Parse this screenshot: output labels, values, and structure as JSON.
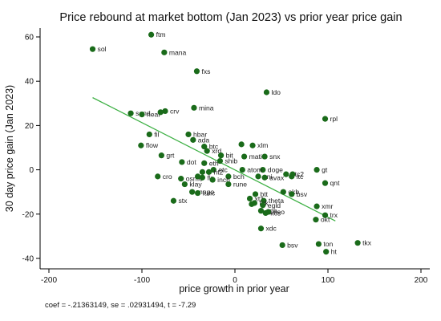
{
  "chart_data": {
    "type": "scatter",
    "title": "Price rebound at market bottom (Jan 2023) vs prior year price gain",
    "xlabel": "price growth in prior year",
    "ylabel": "30 day price gain (Jan 2023)",
    "xlim": [
      -200,
      200
    ],
    "ylim": [
      -40,
      60
    ],
    "xticks": [
      -200,
      -100,
      0,
      100,
      200
    ],
    "yticks": [
      -40,
      -20,
      0,
      20,
      40,
      60
    ],
    "grid": false,
    "colors": {
      "points": "#1a6b1a",
      "fit_line": "#3cb043",
      "axis": "#000000"
    },
    "fit_line": {
      "x": [
        -153,
        108
      ],
      "y": [
        32.6,
        -23.1
      ]
    },
    "footnote": "coef = -.21363149, se = .02931494, t = -7.29",
    "points": [
      {
        "label": "ftm",
        "x": -90,
        "y": 61
      },
      {
        "label": "sol",
        "x": -153,
        "y": 54.5
      },
      {
        "label": "mana",
        "x": -76,
        "y": 53
      },
      {
        "label": "fxs",
        "x": -41,
        "y": 44.5
      },
      {
        "label": "ldo",
        "x": 34,
        "y": 35
      },
      {
        "label": "rpl",
        "x": 97,
        "y": 23
      },
      {
        "label": "mina",
        "x": -44,
        "y": 28
      },
      {
        "label": "sand",
        "x": -112,
        "y": 25.5
      },
      {
        "label": "near",
        "x": -100,
        "y": 25
      },
      {
        "label": "crv",
        "x": -75,
        "y": 26.5
      },
      {
        "label": "",
        "x": -80,
        "y": 26
      },
      {
        "label": "fil",
        "x": -92,
        "y": 16
      },
      {
        "label": "hbar",
        "x": -50,
        "y": 16
      },
      {
        "label": "ada",
        "x": -45,
        "y": 13.5
      },
      {
        "label": "flow",
        "x": -101,
        "y": 11
      },
      {
        "label": "btc",
        "x": -33,
        "y": 10.5
      },
      {
        "label": "xrd",
        "x": -30,
        "y": 8.5
      },
      {
        "label": "xlm",
        "x": 19,
        "y": 11
      },
      {
        "label": "",
        "x": 7,
        "y": 11.5
      },
      {
        "label": "grt",
        "x": -79,
        "y": 6.5
      },
      {
        "label": "bit",
        "x": -15,
        "y": 6.5
      },
      {
        "label": "mati",
        "x": 10,
        "y": 6
      },
      {
        "label": "snx",
        "x": 32,
        "y": 6
      },
      {
        "label": "dot",
        "x": -57,
        "y": 3.5
      },
      {
        "label": "eth",
        "x": -33,
        "y": 3
      },
      {
        "label": "shib",
        "x": -16,
        "y": 4
      },
      {
        "label": "doge",
        "x": 30,
        "y": 0
      },
      {
        "label": "atom",
        "x": 8,
        "y": 0
      },
      {
        "label": "gt",
        "x": 88,
        "y": 0
      },
      {
        "label": "etc",
        "x": -23,
        "y": 0
      },
      {
        "label": "ht2",
        "x": -28,
        "y": -1
      },
      {
        "label": "",
        "x": -35,
        "y": -1
      },
      {
        "label": "btc2",
        "x": 55,
        "y": -2
      },
      {
        "label": "bch",
        "x": -7,
        "y": -3
      },
      {
        "label": "uni",
        "x": 25,
        "y": -3
      },
      {
        "label": "avax",
        "x": 32,
        "y": -3.5
      },
      {
        "label": "ltc",
        "x": 61,
        "y": -3
      },
      {
        "label": "",
        "x": 62,
        "y": -2
      },
      {
        "label": "cro",
        "x": -83,
        "y": -3
      },
      {
        "label": "osmo",
        "x": -58,
        "y": -4
      },
      {
        "label": "flr",
        "x": -35,
        "y": -3.5
      },
      {
        "label": "inch",
        "x": -24,
        "y": -4.5
      },
      {
        "label": "qnt",
        "x": 97,
        "y": -6
      },
      {
        "label": "klay",
        "x": -54,
        "y": -6.5
      },
      {
        "label": "rune",
        "x": -7,
        "y": -6.5
      },
      {
        "label": "",
        "x": -40,
        "y": -3
      },
      {
        "label": "mngo",
        "x": -46,
        "y": -10
      },
      {
        "label": "lunc",
        "x": -40,
        "y": -10.5
      },
      {
        "label": "okb",
        "x": 52,
        "y": -10
      },
      {
        "label": "bsv",
        "x": 61,
        "y": -11
      },
      {
        "label": "btt",
        "x": 22,
        "y": -11
      },
      {
        "label": "xtz",
        "x": 16,
        "y": -13
      },
      {
        "label": "theta",
        "x": 31,
        "y": -14
      },
      {
        "label": "stx",
        "x": -66,
        "y": -14
      },
      {
        "label": "tok",
        "x": 21,
        "y": -15
      },
      {
        "label": "",
        "x": 18,
        "y": -15.5
      },
      {
        "label": "egld",
        "x": 30,
        "y": -16
      },
      {
        "label": "xmr",
        "x": 88,
        "y": -16.5
      },
      {
        "label": "ape",
        "x": 28,
        "y": -18.5
      },
      {
        "label": "neo",
        "x": 36,
        "y": -19
      },
      {
        "label": "kcs",
        "x": 33,
        "y": -19.5
      },
      {
        "label": "trx",
        "x": 97,
        "y": -20.5
      },
      {
        "label": "okt",
        "x": 87,
        "y": -22.5
      },
      {
        "label": "xdc",
        "x": 28,
        "y": -26.5
      },
      {
        "label": "bsv",
        "x": 51,
        "y": -34
      },
      {
        "label": "ton",
        "x": 90,
        "y": -33.5
      },
      {
        "label": "tkx",
        "x": 132,
        "y": -33
      },
      {
        "label": "ht",
        "x": 98,
        "y": -37
      }
    ]
  }
}
